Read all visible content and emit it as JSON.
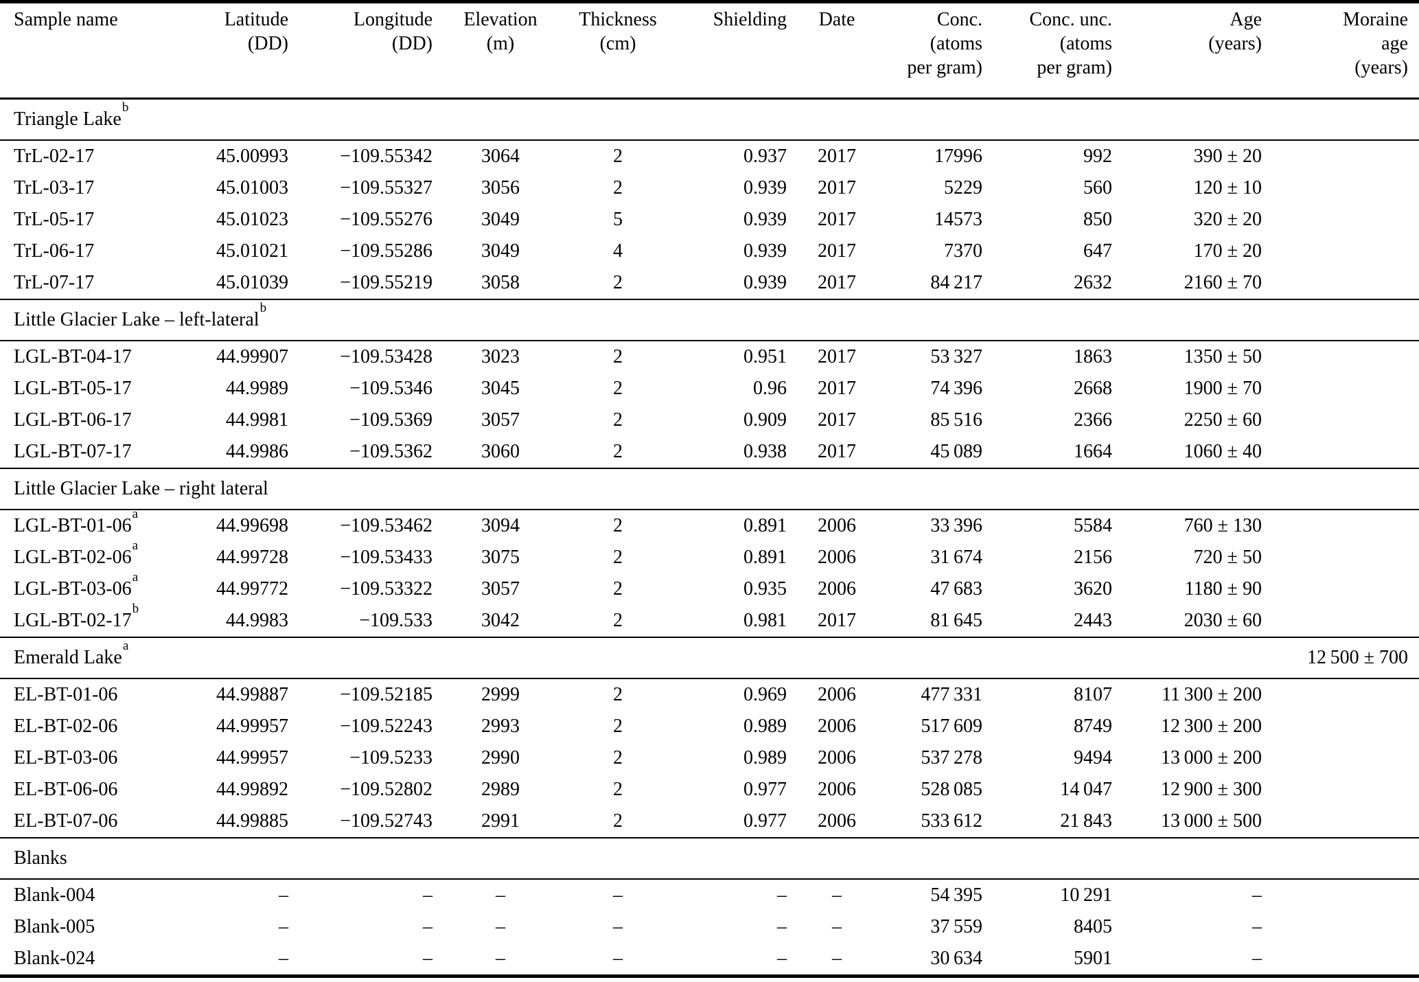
{
  "table": {
    "columns": [
      {
        "id": "sample",
        "align": "left",
        "label_lines": [
          "Sample name"
        ]
      },
      {
        "id": "latitude",
        "align": "right",
        "label_lines": [
          "Latitude",
          "(DD)"
        ]
      },
      {
        "id": "longitude",
        "align": "right",
        "label_lines": [
          "Longitude",
          "(DD)"
        ]
      },
      {
        "id": "elevation",
        "align": "center",
        "label_lines": [
          "Elevation",
          "(m)"
        ]
      },
      {
        "id": "thickness",
        "align": "center",
        "label_lines": [
          "Thickness",
          "(cm)"
        ]
      },
      {
        "id": "shielding",
        "align": "right",
        "label_lines": [
          "Shielding"
        ]
      },
      {
        "id": "date",
        "align": "center",
        "label_lines": [
          "Date"
        ]
      },
      {
        "id": "conc",
        "align": "right",
        "label_lines": [
          "Conc.",
          "(atoms",
          "per gram)"
        ]
      },
      {
        "id": "conc_unc",
        "align": "right",
        "label_lines": [
          "Conc. unc.",
          "(atoms",
          "per gram)"
        ]
      },
      {
        "id": "age",
        "align": "right",
        "label_lines": [
          "Age",
          "(years)"
        ]
      },
      {
        "id": "moraine_age",
        "align": "right",
        "label_lines": [
          "Moraine",
          "age",
          "(years)"
        ]
      }
    ],
    "sections": [
      {
        "title": "Triangle Lake",
        "sup": "b",
        "moraine_age": "",
        "rows": [
          {
            "sample": "TrL-02-17",
            "sup": "",
            "latitude": "45.00993",
            "longitude": "−109.55342",
            "elevation": "3064",
            "thickness": "2",
            "shielding": "0.937",
            "date": "2017",
            "conc": "17996",
            "conc_unc": "992",
            "age": "390 ± 20"
          },
          {
            "sample": "TrL-03-17",
            "sup": "",
            "latitude": "45.01003",
            "longitude": "−109.55327",
            "elevation": "3056",
            "thickness": "2",
            "shielding": "0.939",
            "date": "2017",
            "conc": "5229",
            "conc_unc": "560",
            "age": "120 ± 10"
          },
          {
            "sample": "TrL-05-17",
            "sup": "",
            "latitude": "45.01023",
            "longitude": "−109.55276",
            "elevation": "3049",
            "thickness": "5",
            "shielding": "0.939",
            "date": "2017",
            "conc": "14573",
            "conc_unc": "850",
            "age": "320 ± 20"
          },
          {
            "sample": "TrL-06-17",
            "sup": "",
            "latitude": "45.01021",
            "longitude": "−109.55286",
            "elevation": "3049",
            "thickness": "4",
            "shielding": "0.939",
            "date": "2017",
            "conc": "7370",
            "conc_unc": "647",
            "age": "170 ± 20"
          },
          {
            "sample": "TrL-07-17",
            "sup": "",
            "latitude": "45.01039",
            "longitude": "−109.55219",
            "elevation": "3058",
            "thickness": "2",
            "shielding": "0.939",
            "date": "2017",
            "conc": "84 217",
            "conc_unc": "2632",
            "age": "2160 ± 70"
          }
        ]
      },
      {
        "title": "Little Glacier Lake – left-lateral",
        "sup": "b",
        "moraine_age": "",
        "rows": [
          {
            "sample": "LGL-BT-04-17",
            "sup": "",
            "latitude": "44.99907",
            "longitude": "−109.53428",
            "elevation": "3023",
            "thickness": "2",
            "shielding": "0.951",
            "date": "2017",
            "conc": "53 327",
            "conc_unc": "1863",
            "age": "1350 ± 50"
          },
          {
            "sample": "LGL-BT-05-17",
            "sup": "",
            "latitude": "44.9989",
            "longitude": "−109.5346",
            "elevation": "3045",
            "thickness": "2",
            "shielding": "0.96",
            "date": "2017",
            "conc": "74 396",
            "conc_unc": "2668",
            "age": "1900 ± 70"
          },
          {
            "sample": "LGL-BT-06-17",
            "sup": "",
            "latitude": "44.9981",
            "longitude": "−109.5369",
            "elevation": "3057",
            "thickness": "2",
            "shielding": "0.909",
            "date": "2017",
            "conc": "85 516",
            "conc_unc": "2366",
            "age": "2250 ± 60"
          },
          {
            "sample": "LGL-BT-07-17",
            "sup": "",
            "latitude": "44.9986",
            "longitude": "−109.5362",
            "elevation": "3060",
            "thickness": "2",
            "shielding": "0.938",
            "date": "2017",
            "conc": "45 089",
            "conc_unc": "1664",
            "age": "1060 ± 40"
          }
        ]
      },
      {
        "title": "Little Glacier Lake – right lateral",
        "sup": "",
        "moraine_age": "",
        "rows": [
          {
            "sample": "LGL-BT-01-06",
            "sup": "a",
            "latitude": "44.99698",
            "longitude": "−109.53462",
            "elevation": "3094",
            "thickness": "2",
            "shielding": "0.891",
            "date": "2006",
            "conc": "33 396",
            "conc_unc": "5584",
            "age": "760 ± 130"
          },
          {
            "sample": "LGL-BT-02-06",
            "sup": "a",
            "latitude": "44.99728",
            "longitude": "−109.53433",
            "elevation": "3075",
            "thickness": "2",
            "shielding": "0.891",
            "date": "2006",
            "conc": "31 674",
            "conc_unc": "2156",
            "age": "720 ± 50"
          },
          {
            "sample": "LGL-BT-03-06",
            "sup": "a",
            "latitude": "44.99772",
            "longitude": "−109.53322",
            "elevation": "3057",
            "thickness": "2",
            "shielding": "0.935",
            "date": "2006",
            "conc": "47 683",
            "conc_unc": "3620",
            "age": "1180 ± 90"
          },
          {
            "sample": "LGL-BT-02-17",
            "sup": "b",
            "latitude": "44.9983",
            "longitude": "−109.533",
            "elevation": "3042",
            "thickness": "2",
            "shielding": "0.981",
            "date": "2017",
            "conc": "81 645",
            "conc_unc": "2443",
            "age": "2030 ± 60"
          }
        ]
      },
      {
        "title": "Emerald Lake",
        "sup": "a",
        "moraine_age": "12 500 ± 700",
        "rows": [
          {
            "sample": "EL-BT-01-06",
            "sup": "",
            "latitude": "44.99887",
            "longitude": "−109.52185",
            "elevation": "2999",
            "thickness": "2",
            "shielding": "0.969",
            "date": "2006",
            "conc": "477 331",
            "conc_unc": "8107",
            "age": "11 300 ± 200"
          },
          {
            "sample": "EL-BT-02-06",
            "sup": "",
            "latitude": "44.99957",
            "longitude": "−109.52243",
            "elevation": "2993",
            "thickness": "2",
            "shielding": "0.989",
            "date": "2006",
            "conc": "517 609",
            "conc_unc": "8749",
            "age": "12 300 ± 200"
          },
          {
            "sample": "EL-BT-03-06",
            "sup": "",
            "latitude": "44.99957",
            "longitude": "−109.5233",
            "elevation": "2990",
            "thickness": "2",
            "shielding": "0.989",
            "date": "2006",
            "conc": "537 278",
            "conc_unc": "9494",
            "age": "13 000 ± 200"
          },
          {
            "sample": "EL-BT-06-06",
            "sup": "",
            "latitude": "44.99892",
            "longitude": "−109.52802",
            "elevation": "2989",
            "thickness": "2",
            "shielding": "0.977",
            "date": "2006",
            "conc": "528 085",
            "conc_unc": "14 047",
            "age": "12 900 ± 300"
          },
          {
            "sample": "EL-BT-07-06",
            "sup": "",
            "latitude": "44.99885",
            "longitude": "−109.52743",
            "elevation": "2991",
            "thickness": "2",
            "shielding": "0.977",
            "date": "2006",
            "conc": "533 612",
            "conc_unc": "21 843",
            "age": "13 000 ± 500"
          }
        ]
      },
      {
        "title": "Blanks",
        "sup": "",
        "moraine_age": "",
        "rows": [
          {
            "sample": "Blank-004",
            "sup": "",
            "latitude": "–",
            "longitude": "–",
            "elevation": "–",
            "thickness": "–",
            "shielding": "–",
            "date": "–",
            "conc": "54 395",
            "conc_unc": "10 291",
            "age": "–"
          },
          {
            "sample": "Blank-005",
            "sup": "",
            "latitude": "–",
            "longitude": "–",
            "elevation": "–",
            "thickness": "–",
            "shielding": "–",
            "date": "–",
            "conc": "37 559",
            "conc_unc": "8405",
            "age": "–"
          },
          {
            "sample": "Blank-024",
            "sup": "",
            "latitude": "–",
            "longitude": "–",
            "elevation": "–",
            "thickness": "–",
            "shielding": "–",
            "date": "–",
            "conc": "30 634",
            "conc_unc": "5901",
            "age": "–"
          }
        ]
      }
    ]
  }
}
